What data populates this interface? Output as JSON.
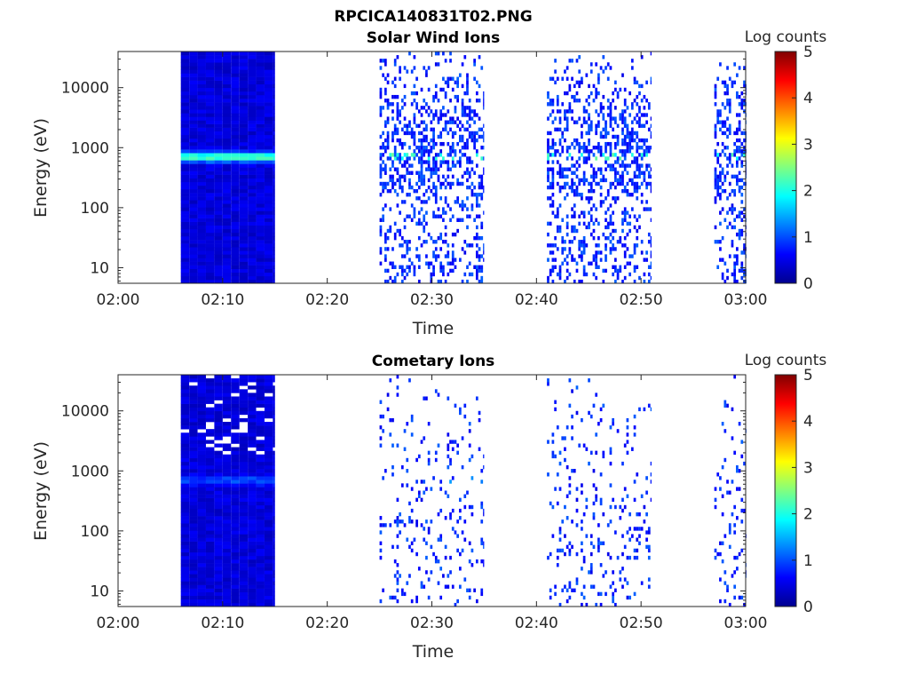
{
  "figure": {
    "filename": "RPCICA140831T02.PNG"
  },
  "colormap": [
    "#00008f",
    "#0000ff",
    "#0080ff",
    "#00ffff",
    "#80ff80",
    "#ffff00",
    "#ff8000",
    "#ff0000",
    "#800000"
  ],
  "chart_data": [
    {
      "type": "heatmap",
      "title": "Solar Wind Ions",
      "xlabel": "Time",
      "ylabel": "Energy (eV)",
      "x_ticks": [
        "02:00",
        "02:10",
        "02:20",
        "02:30",
        "02:40",
        "02:50",
        "03:00"
      ],
      "xlim": [
        "02:00",
        "03:00"
      ],
      "y_scale": "log",
      "y_ticks": [
        "10",
        "100",
        "1000",
        "10000"
      ],
      "ylim": [
        5.5,
        40000
      ],
      "colorbar": {
        "label": "Log counts",
        "ticks": [
          "0",
          "1",
          "2",
          "3",
          "4",
          "5"
        ],
        "range": [
          0,
          5
        ]
      },
      "data_segments": [
        {
          "start": "02:06",
          "end": "02:15",
          "density": "continuous",
          "peak_energy_eV": 700,
          "peak_log_counts": 2.2
        },
        {
          "start": "02:25",
          "end": "02:35",
          "density": "sparse",
          "peak_energy_eV": 700,
          "peak_log_counts": 2.3
        },
        {
          "start": "02:41",
          "end": "02:51",
          "density": "sparse",
          "peak_energy_eV": 700,
          "peak_log_counts": 2.3
        },
        {
          "start": "02:57",
          "end": "03:00",
          "density": "sparse",
          "peak_energy_eV": 700,
          "peak_log_counts": 2.2
        }
      ]
    },
    {
      "type": "heatmap",
      "title": "Cometary Ions",
      "xlabel": "Time",
      "ylabel": "Energy (eV)",
      "x_ticks": [
        "02:00",
        "02:10",
        "02:20",
        "02:30",
        "02:40",
        "02:50",
        "03:00"
      ],
      "xlim": [
        "02:00",
        "03:00"
      ],
      "y_scale": "log",
      "y_ticks": [
        "10",
        "100",
        "1000",
        "10000"
      ],
      "ylim": [
        5.5,
        40000
      ],
      "colorbar": {
        "label": "Log counts",
        "ticks": [
          "0",
          "1",
          "2",
          "3",
          "4",
          "5"
        ],
        "range": [
          0,
          5
        ]
      },
      "data_segments": [
        {
          "start": "02:06",
          "end": "02:15",
          "density": "continuous",
          "peak_energy_eV": 700,
          "peak_log_counts": 0.9
        },
        {
          "start": "02:25",
          "end": "02:35",
          "density": "very sparse",
          "peak_energy_eV": 700,
          "peak_log_counts": 1.3
        },
        {
          "start": "02:41",
          "end": "02:51",
          "density": "very sparse",
          "peak_energy_eV": 700,
          "peak_log_counts": 1.3
        },
        {
          "start": "02:57",
          "end": "03:00",
          "density": "very sparse",
          "peak_energy_eV": 700,
          "peak_log_counts": 1.3
        }
      ]
    }
  ]
}
